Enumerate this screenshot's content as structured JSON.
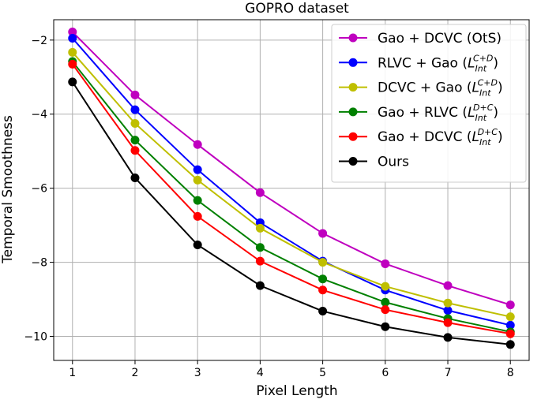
{
  "chart_data": {
    "type": "line",
    "title": "GOPRO dataset",
    "xlabel": "Pixel Length",
    "ylabel": "Temporal Smoothness",
    "x": [
      1,
      2,
      3,
      4,
      5,
      6,
      7,
      8
    ],
    "xlim": [
      0.7,
      8.3
    ],
    "ylim": [
      -10.65,
      -1.45
    ],
    "xticks": [
      "1",
      "2",
      "3",
      "4",
      "5",
      "6",
      "7",
      "8"
    ],
    "yticks": [
      {
        "value": -2,
        "label": "−2"
      },
      {
        "value": -4,
        "label": "−4"
      },
      {
        "value": -6,
        "label": "−6"
      },
      {
        "value": -8,
        "label": "−8"
      },
      {
        "value": -10,
        "label": "−10"
      }
    ],
    "grid": true,
    "legend_position": "top-right",
    "series": [
      {
        "name": "Gao + DCVC (OtS)",
        "label_main": "Gao + DCVC (OtS)",
        "label_sub": "",
        "label_sup": "",
        "label_end": "",
        "color": "#bf00bf",
        "values": [
          -1.78,
          -3.48,
          -4.82,
          -6.12,
          -7.22,
          -8.04,
          -8.63,
          -9.15
        ]
      },
      {
        "name": "RLVC + Gao (L_Int^{C+D})",
        "label_main": "RLVC + Gao (",
        "label_sub": "Int",
        "label_sup": "C+D",
        "label_end": ")",
        "color": "#0000ff",
        "values": [
          -1.95,
          -3.88,
          -5.5,
          -6.93,
          -7.97,
          -8.75,
          -9.3,
          -9.7
        ]
      },
      {
        "name": "DCVC + Gao (L_Int^{C+D})",
        "label_main": "DCVC + Gao (",
        "label_sub": "Int",
        "label_sup": "C+D",
        "label_end": ")",
        "color": "#bfbf00",
        "values": [
          -2.33,
          -4.25,
          -5.78,
          -7.08,
          -8.0,
          -8.65,
          -9.1,
          -9.47
        ]
      },
      {
        "name": "Gao + RLVC (L_Int^{D+C})",
        "label_main": "Gao + RLVC (",
        "label_sub": "Int",
        "label_sup": "D+C",
        "label_end": ")",
        "color": "#008000",
        "values": [
          -2.58,
          -4.7,
          -6.33,
          -7.6,
          -8.45,
          -9.08,
          -9.52,
          -9.88
        ]
      },
      {
        "name": "Gao + DCVC (L_Int^{D+C})",
        "label_main": "Gao + DCVC (",
        "label_sub": "Int",
        "label_sup": "D+C",
        "label_end": ")",
        "color": "#ff0000",
        "values": [
          -2.65,
          -4.98,
          -6.76,
          -7.97,
          -8.75,
          -9.28,
          -9.63,
          -9.93
        ]
      },
      {
        "name": "Ours",
        "label_main": "Ours",
        "label_sub": "",
        "label_sup": "",
        "label_end": "",
        "color": "#000000",
        "values": [
          -3.13,
          -5.72,
          -7.53,
          -8.63,
          -9.32,
          -9.74,
          -10.03,
          -10.22
        ]
      }
    ]
  }
}
